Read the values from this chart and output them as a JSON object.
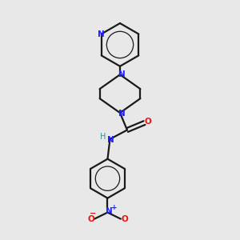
{
  "background_color": "#e8e8e8",
  "bond_color": "#1a1a1a",
  "N_color": "#2020ff",
  "O_color": "#ee1111",
  "H_color": "#309090",
  "figsize": [
    3.0,
    3.0
  ],
  "dpi": 100,
  "xlim": [
    0,
    10
  ],
  "ylim": [
    0,
    10
  ]
}
